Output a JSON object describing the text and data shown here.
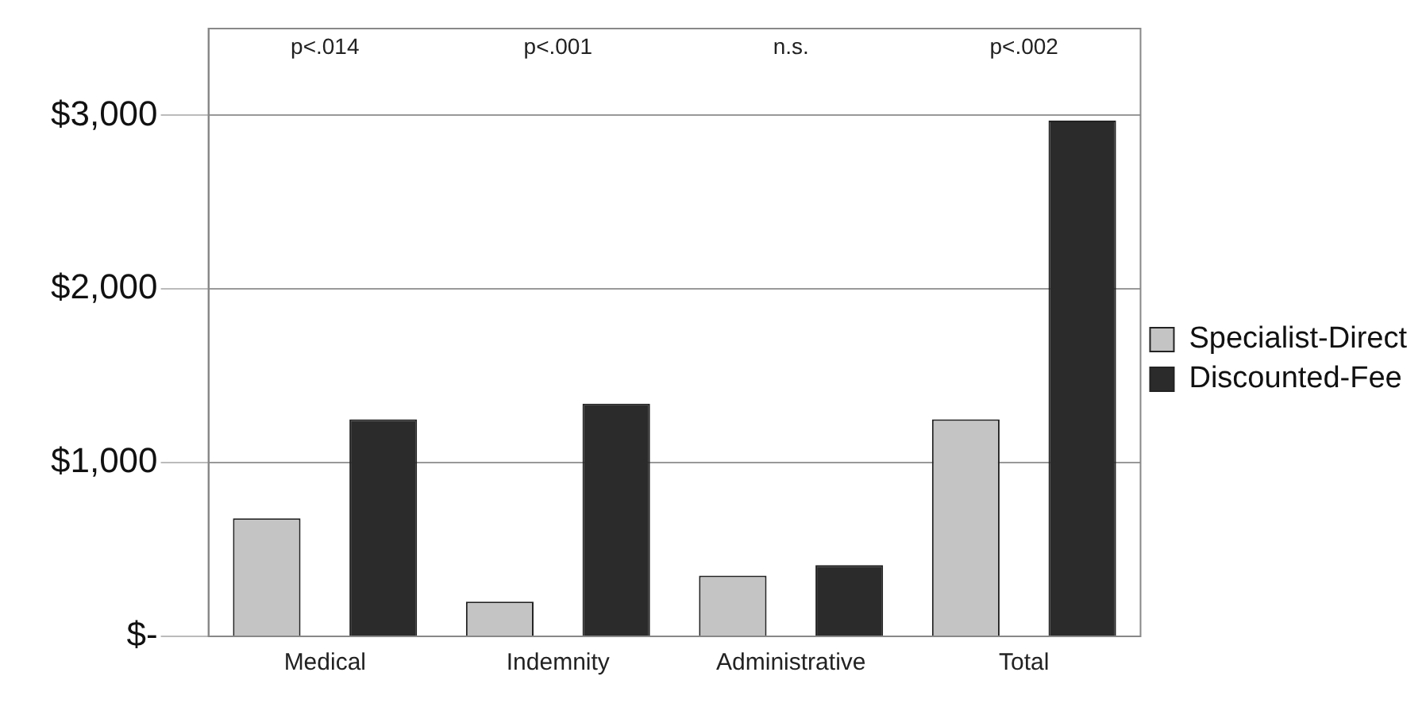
{
  "chart_data": {
    "type": "bar",
    "categories": [
      "Medical",
      "Indemnity",
      "Administrative",
      "Total"
    ],
    "series": [
      {
        "name": "Specialist-Direct",
        "color": "#c4c4c4",
        "values": [
          680,
          200,
          350,
          1250
        ]
      },
      {
        "name": "Discounted-Fee",
        "color": "#2b2b2b",
        "values": [
          1250,
          1340,
          410,
          2970
        ]
      }
    ],
    "ylim": [
      0,
      3500
    ],
    "yticks": [
      {
        "value": 0,
        "label": "$-"
      },
      {
        "value": 1000,
        "label": "$1,000"
      },
      {
        "value": 2000,
        "label": "$2,000"
      },
      {
        "value": 3000,
        "label": "$3,000"
      }
    ],
    "grid": "y",
    "legend": "right",
    "annotations": [
      "p<.014",
      "p<.001",
      "n.s.",
      "p<.002"
    ]
  }
}
